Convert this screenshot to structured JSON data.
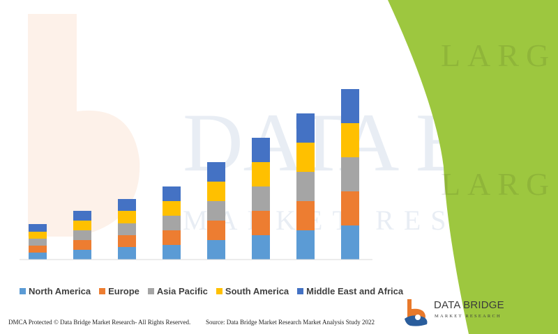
{
  "colors": {
    "green_panel": "#9dc73f",
    "axis": "#d9d9d9",
    "logo_orange": "#e8792b",
    "logo_blue": "#2a5d9c"
  },
  "chart_data": {
    "type": "bar",
    "stacked": true,
    "title": "",
    "xlabel": "",
    "ylabel": "",
    "grid": false,
    "legend_position": "bottom",
    "categories": [
      "",
      "",
      "",
      "",
      "",
      "",
      "",
      ""
    ],
    "series": [
      {
        "name": "North America",
        "color": "#5b9bd5",
        "values": [
          10,
          14,
          18,
          21,
          28,
          35,
          42,
          49
        ]
      },
      {
        "name": "Europe",
        "color": "#ed7d31",
        "values": [
          10,
          14,
          17,
          21,
          28,
          35,
          42,
          49
        ]
      },
      {
        "name": "Asia Pacific",
        "color": "#a5a5a5",
        "values": [
          10,
          14,
          17,
          21,
          28,
          35,
          42,
          49
        ]
      },
      {
        "name": "South America",
        "color": "#ffc000",
        "values": [
          10,
          14,
          18,
          21,
          28,
          35,
          42,
          49
        ]
      },
      {
        "name": "Middle East and Africa",
        "color": "#4472c4",
        "values": [
          11,
          14,
          17,
          21,
          28,
          35,
          42,
          49
        ]
      }
    ]
  },
  "watermark": {
    "line1": "DATA BRI",
    "line2": "MARKET RESEARCH",
    "right_lines": [
      "LARG",
      "LARG"
    ]
  },
  "footer": {
    "copyright": "DMCA Protected © Data Bridge Market Research- All Rights Reserved.",
    "source": "Source: Data Bridge Market Research Market Analysis Study 2022"
  },
  "logo": {
    "name": "DATA BRIDGE",
    "tagline": "MARKET RESEARCH"
  }
}
